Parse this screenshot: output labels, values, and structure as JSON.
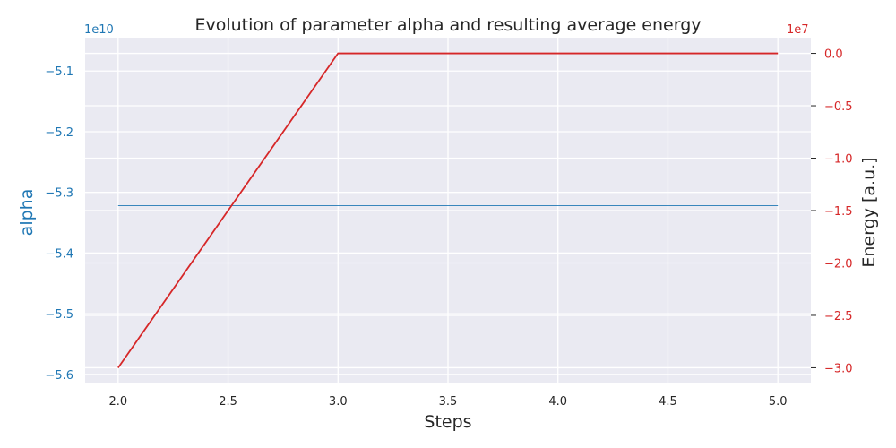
{
  "chart_data": {
    "type": "line",
    "title": "Evolution of parameter alpha and resulting average energy",
    "xlabel": "Steps",
    "x": [
      2.0,
      3.0,
      4.0,
      5.0
    ],
    "xlim": [
      1.85,
      5.15
    ],
    "xticks": [
      2.0,
      2.5,
      3.0,
      3.5,
      4.0,
      4.5,
      5.0
    ],
    "xtick_labels": [
      "2.0",
      "2.5",
      "3.0",
      "3.5",
      "4.0",
      "4.5",
      "5.0"
    ],
    "grid": true,
    "background": "#eaeaf2",
    "left_axis": {
      "label": "alpha",
      "color": "#1f77b4",
      "offset_text": "1e10",
      "ylim": [
        -5.615,
        -5.045
      ],
      "ticks": [
        -5.1,
        -5.2,
        -5.3,
        -5.4,
        -5.5,
        -5.6
      ],
      "tick_labels": [
        "−5.1",
        "−5.2",
        "−5.3",
        "−5.4",
        "−5.5",
        "−5.6"
      ],
      "values": [
        -5.322,
        -5.322,
        -5.322,
        -5.322
      ]
    },
    "right_axis": {
      "label": "Energy [a.u.]",
      "color": "#d62728",
      "offset_text": "1e7",
      "ylim": [
        -3.15,
        0.15
      ],
      "ticks": [
        0.0,
        -0.5,
        -1.0,
        -1.5,
        -2.0,
        -2.5,
        -3.0
      ],
      "tick_labels": [
        "0.0",
        "−0.5",
        "−1.0",
        "−1.5",
        "−2.0",
        "−2.5",
        "−3.0"
      ],
      "values": [
        -3.0,
        0.0,
        0.0,
        0.0
      ]
    }
  }
}
